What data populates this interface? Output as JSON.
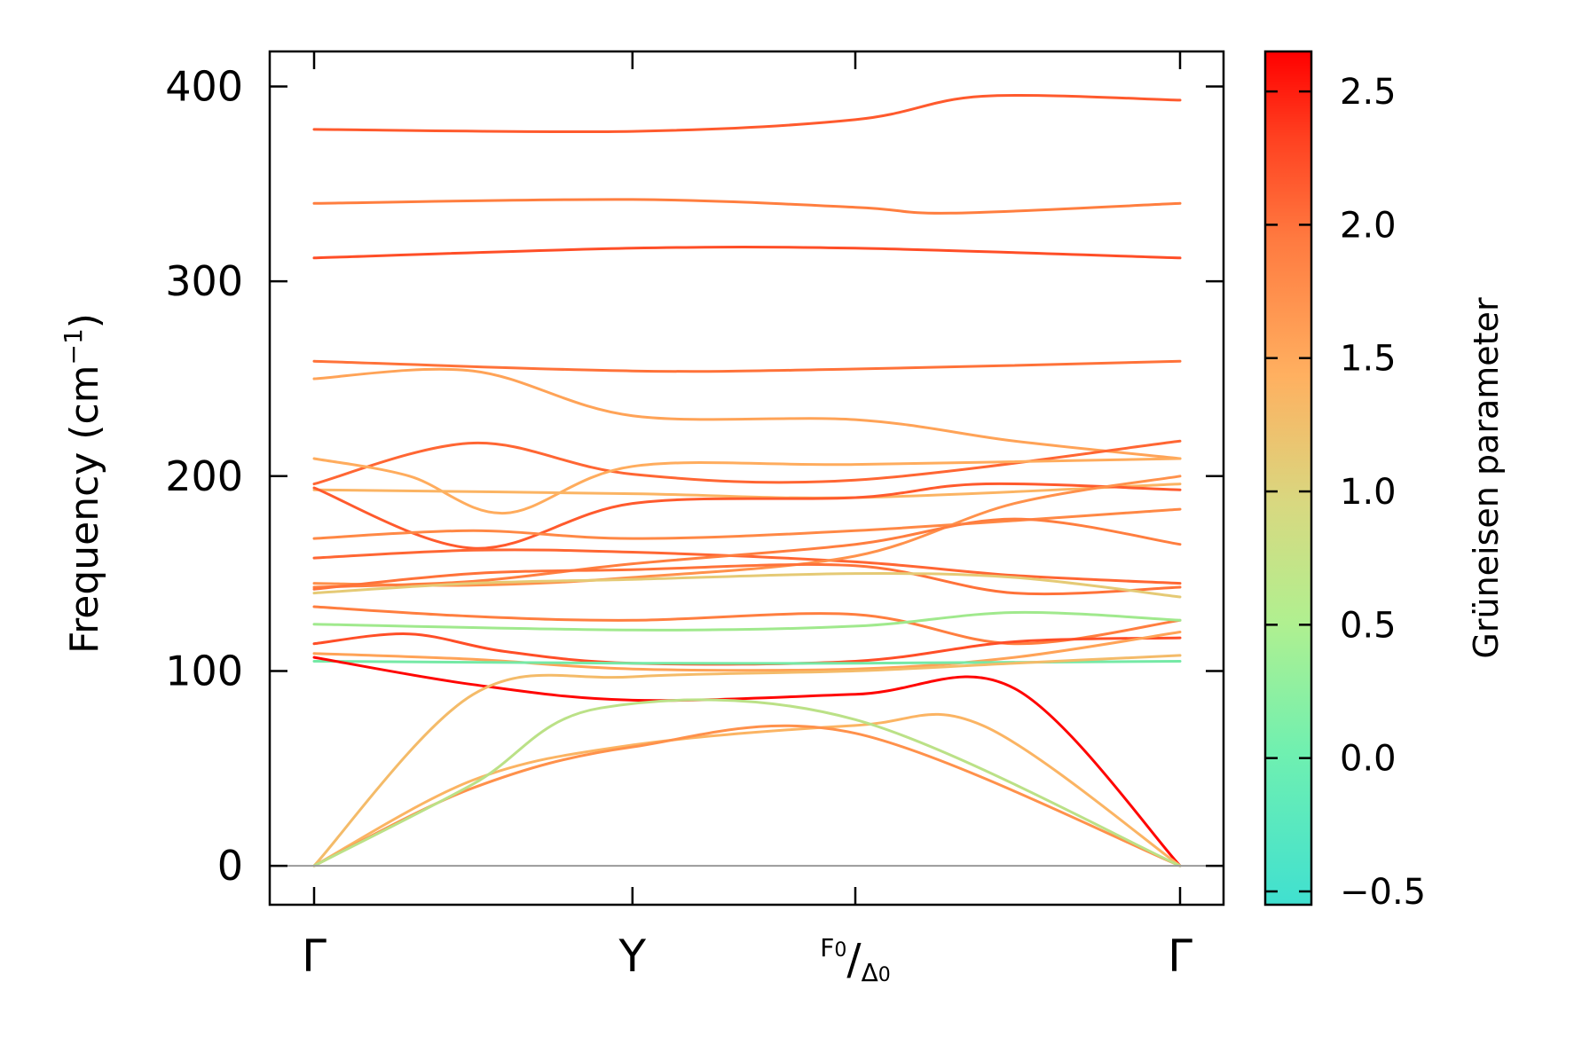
{
  "chart_data": {
    "type": "line",
    "title": "",
    "xlabel": "",
    "ylabel_main": "Frequency (cm",
    "ylabel_exp": "−1",
    "ylabel_close": ")",
    "ylim": [
      -20,
      418
    ],
    "yticks": [
      0,
      100,
      200,
      300,
      400
    ],
    "xticks": [
      {
        "pos": 0.0,
        "label": "Γ"
      },
      {
        "pos": 1.0,
        "label": "Y"
      },
      {
        "pos": 1.7,
        "label": "F0/Δ0",
        "num": "F",
        "num_sub": "0",
        "den": "Δ",
        "den_sub": "0"
      },
      {
        "pos": 2.72,
        "label": "Γ"
      }
    ],
    "zero_line": 0,
    "colorbar": {
      "label": "Grüneisen parameter",
      "vmin": -0.55,
      "vmax": 2.65,
      "ticks": [
        -0.5,
        0.0,
        0.5,
        1.0,
        1.5,
        2.0,
        2.5
      ],
      "tick_labels": [
        "−0.5",
        "0.0",
        "0.5",
        "1.0",
        "1.5",
        "2.0",
        "2.5"
      ],
      "colormap": [
        "#40e0d0",
        "#90ee90",
        "#d8d880",
        "#ffb060",
        "#ff8040",
        "#ff4020",
        "#ff0000"
      ]
    },
    "bands": [
      {
        "x": [
          0,
          1,
          1.7,
          2.1,
          2.72
        ],
        "y": [
          378,
          377,
          383,
          395,
          393
        ],
        "g": 1.9
      },
      {
        "x": [
          0,
          1,
          1.7,
          2.0,
          2.72
        ],
        "y": [
          340,
          342,
          338,
          335,
          340
        ],
        "g": 1.6
      },
      {
        "x": [
          0,
          1,
          1.7,
          2.72
        ],
        "y": [
          312,
          317,
          317,
          312
        ],
        "g": 2.0
      },
      {
        "x": [
          0,
          1,
          1.7,
          2.72
        ],
        "y": [
          259,
          254,
          255,
          259
        ],
        "g": 1.7
      },
      {
        "x": [
          0,
          0.5,
          1,
          1.7,
          2.2,
          2.72
        ],
        "y": [
          250,
          254,
          231,
          229,
          218,
          209
        ],
        "g": 1.2
      },
      {
        "x": [
          0,
          0.5,
          1,
          1.7,
          2.72
        ],
        "y": [
          196,
          217,
          201,
          198,
          218
        ],
        "g": 1.8
      },
      {
        "x": [
          0,
          0.3,
          0.6,
          1,
          1.7,
          2.72
        ],
        "y": [
          209,
          200,
          181,
          205,
          206,
          209
        ],
        "g": 1.1
      },
      {
        "x": [
          0,
          1,
          1.7,
          2.72
        ],
        "y": [
          193,
          191,
          189,
          196
        ],
        "g": 1.0
      },
      {
        "x": [
          0,
          0.5,
          1,
          1.7,
          2.1,
          2.72
        ],
        "y": [
          194,
          163,
          186,
          189,
          196,
          193
        ],
        "g": 1.9
      },
      {
        "x": [
          0,
          0.5,
          1,
          1.7,
          2.72
        ],
        "y": [
          168,
          172,
          168,
          172,
          183
        ],
        "g": 1.5
      },
      {
        "x": [
          0,
          0.5,
          1,
          1.7,
          2.2,
          2.72
        ],
        "y": [
          158,
          162,
          161,
          156,
          149,
          145
        ],
        "g": 1.8
      },
      {
        "x": [
          0,
          0.5,
          1,
          1.7,
          2.2,
          2.72
        ],
        "y": [
          145,
          144,
          148,
          159,
          186,
          200
        ],
        "g": 1.4
      },
      {
        "x": [
          0,
          0.5,
          1,
          1.7,
          2.2,
          2.72
        ],
        "y": [
          143,
          146,
          155,
          165,
          178,
          165
        ],
        "g": 1.6
      },
      {
        "x": [
          0,
          0.5,
          1,
          1.7,
          2.2,
          2.72
        ],
        "y": [
          142,
          150,
          152,
          154,
          140,
          143
        ],
        "g": 1.7
      },
      {
        "x": [
          0,
          0.5,
          1,
          1.7,
          2.2,
          2.72
        ],
        "y": [
          140,
          145,
          147,
          150,
          148,
          138
        ],
        "g": 0.7
      },
      {
        "x": [
          0,
          0.5,
          1,
          1.7,
          2.2,
          2.72
        ],
        "y": [
          133,
          128,
          126,
          129,
          114,
          126
        ],
        "g": 1.6
      },
      {
        "x": [
          0,
          1,
          1.7,
          2.2,
          2.72
        ],
        "y": [
          124,
          121,
          123,
          130,
          126
        ],
        "g": 0.1
      },
      {
        "x": [
          0,
          0.3,
          0.6,
          1,
          1.7,
          2.2,
          2.72
        ],
        "y": [
          114,
          119,
          110,
          104,
          105,
          115,
          117
        ],
        "g": 2.0
      },
      {
        "x": [
          0,
          0.5,
          1,
          1.7,
          2.2,
          2.72
        ],
        "y": [
          109,
          106,
          101,
          101,
          107,
          120
        ],
        "g": 1.2
      },
      {
        "x": [
          0,
          1,
          1.7,
          2.72
        ],
        "y": [
          105,
          104,
          104,
          105
        ],
        "g": -0.2
      },
      {
        "x": [
          0,
          0.5,
          1,
          1.7,
          2.2,
          2.72
        ],
        "y": [
          107,
          93,
          85,
          88,
          91,
          0
        ],
        "g": 2.6
      },
      {
        "x": [
          0,
          0.5,
          1,
          1.7,
          2.2,
          2.72
        ],
        "y": [
          0,
          88,
          97,
          100,
          104,
          108
        ],
        "g": 0.9
      },
      {
        "x": [
          0,
          0.5,
          1,
          1.7,
          2.1,
          2.72
        ],
        "y": [
          0,
          44,
          62,
          72,
          72,
          0
        ],
        "g": 1.0
      },
      {
        "x": [
          0,
          0.5,
          1,
          1.7,
          2.72
        ],
        "y": [
          0,
          40,
          61,
          68,
          0
        ],
        "g": 1.4
      },
      {
        "x": [
          0,
          0.5,
          0.9,
          1.7,
          2.72
        ],
        "y": [
          0,
          42,
          81,
          75,
          0
        ],
        "g": 0.3
      }
    ]
  }
}
